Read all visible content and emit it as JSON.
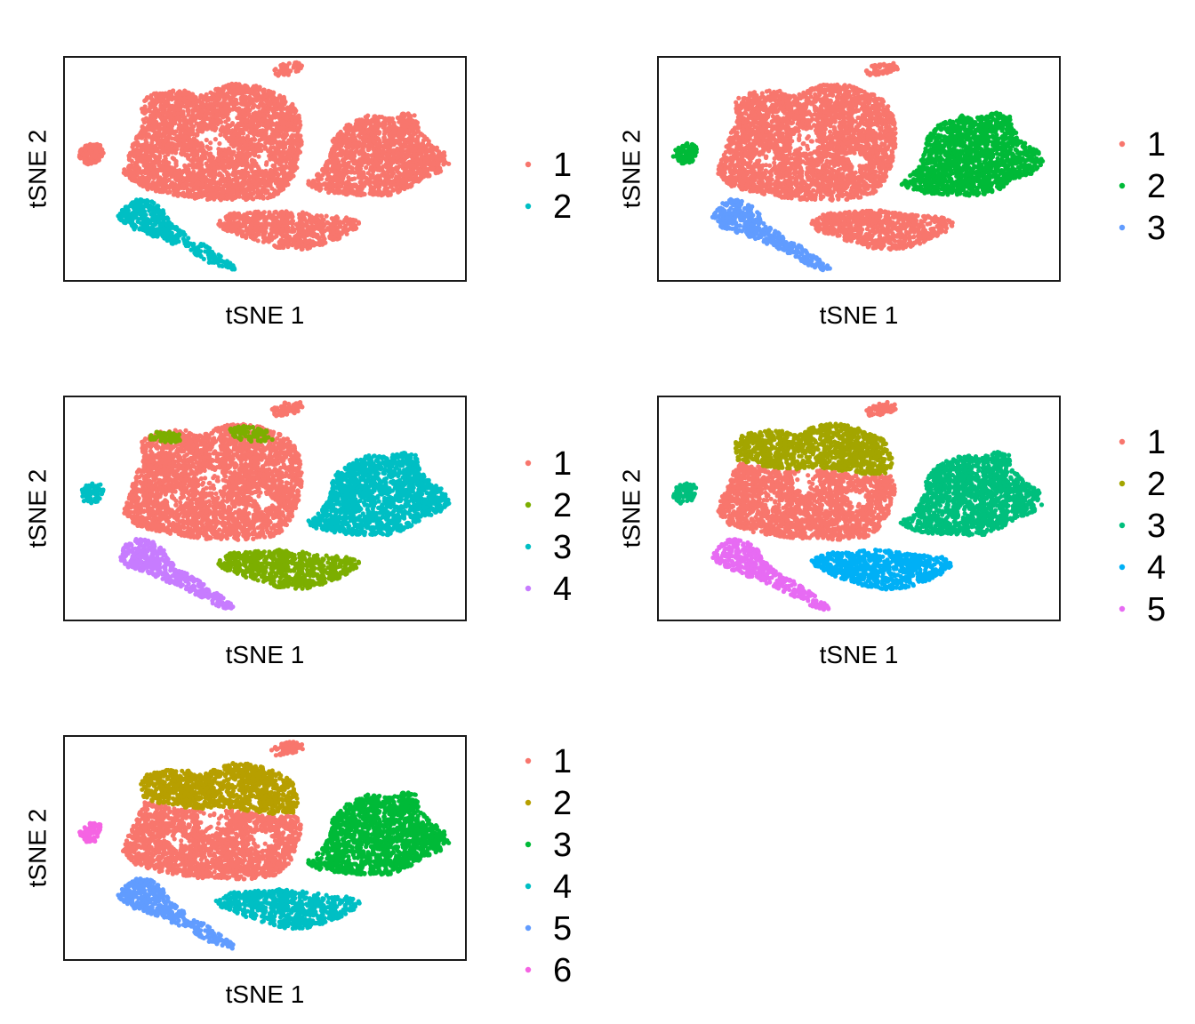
{
  "colors": {
    "palette_2": [
      "#F8766D",
      "#00BFC4"
    ],
    "palette_3": [
      "#F8766D",
      "#00BA38",
      "#619CFF"
    ],
    "palette_4": [
      "#F8766D",
      "#7CAE00",
      "#00BFC4",
      "#C77CFF"
    ],
    "palette_5": [
      "#F8766D",
      "#A3A500",
      "#00BF7D",
      "#00B0F6",
      "#E76BF3"
    ],
    "palette_6": [
      "#F8766D",
      "#B79F00",
      "#00BA38",
      "#00BFC4",
      "#619CFF",
      "#F564E3"
    ]
  },
  "chart_data": [
    {
      "type": "scatter",
      "title": "",
      "xlabel": "tSNE 1",
      "ylabel": "tSNE 2",
      "grid": false,
      "ticks": false,
      "legend": {
        "placement": "right",
        "entries": [
          "1",
          "2"
        ]
      },
      "series": [
        {
          "name": "1",
          "regions": [
            "tail",
            "left",
            "main",
            "topsmall",
            "right",
            "bottom"
          ]
        },
        {
          "name": "2",
          "regions": [
            "band"
          ]
        }
      ]
    },
    {
      "type": "scatter",
      "title": "",
      "xlabel": "tSNE 1",
      "ylabel": "tSNE 2",
      "grid": false,
      "ticks": false,
      "legend": {
        "placement": "right",
        "entries": [
          "1",
          "2",
          "3"
        ]
      },
      "series": [
        {
          "name": "1",
          "regions": [
            "topsmall",
            "main",
            "bottom"
          ]
        },
        {
          "name": "2",
          "regions": [
            "tail",
            "right"
          ]
        },
        {
          "name": "3",
          "regions": [
            "band"
          ]
        }
      ]
    },
    {
      "type": "scatter",
      "title": "",
      "xlabel": "tSNE 1",
      "ylabel": "tSNE 2",
      "grid": false,
      "ticks": false,
      "legend": {
        "placement": "right",
        "entries": [
          "1",
          "2",
          "3",
          "4"
        ]
      },
      "series": [
        {
          "name": "1",
          "regions": [
            "topsmall",
            "main"
          ]
        },
        {
          "name": "2",
          "regions": [
            "bottom",
            "specks_top"
          ]
        },
        {
          "name": "3",
          "regions": [
            "tail",
            "right"
          ]
        },
        {
          "name": "4",
          "regions": [
            "band"
          ]
        }
      ]
    },
    {
      "type": "scatter",
      "title": "",
      "xlabel": "tSNE 1",
      "ylabel": "tSNE 2",
      "grid": false,
      "ticks": false,
      "legend": {
        "placement": "right",
        "entries": [
          "1",
          "2",
          "3",
          "4",
          "5"
        ]
      },
      "series": [
        {
          "name": "1",
          "regions": [
            "topsmall",
            "lower_main"
          ]
        },
        {
          "name": "2",
          "regions": [
            "upper_main"
          ]
        },
        {
          "name": "3",
          "regions": [
            "tail",
            "right"
          ]
        },
        {
          "name": "4",
          "regions": [
            "bottom"
          ]
        },
        {
          "name": "5",
          "regions": [
            "band"
          ]
        }
      ]
    },
    {
      "type": "scatter",
      "title": "",
      "xlabel": "tSNE 1",
      "ylabel": "tSNE 2",
      "grid": false,
      "ticks": false,
      "legend": {
        "placement": "right",
        "entries": [
          "1",
          "2",
          "3",
          "4",
          "5",
          "6"
        ]
      },
      "series": [
        {
          "name": "1",
          "regions": [
            "topsmall",
            "lower_main"
          ]
        },
        {
          "name": "2",
          "regions": [
            "upper_main"
          ]
        },
        {
          "name": "3",
          "regions": [
            "right"
          ]
        },
        {
          "name": "4",
          "regions": [
            "bottom"
          ]
        },
        {
          "name": "5",
          "regions": [
            "band"
          ]
        },
        {
          "name": "6",
          "regions": [
            "tail"
          ]
        }
      ]
    }
  ]
}
